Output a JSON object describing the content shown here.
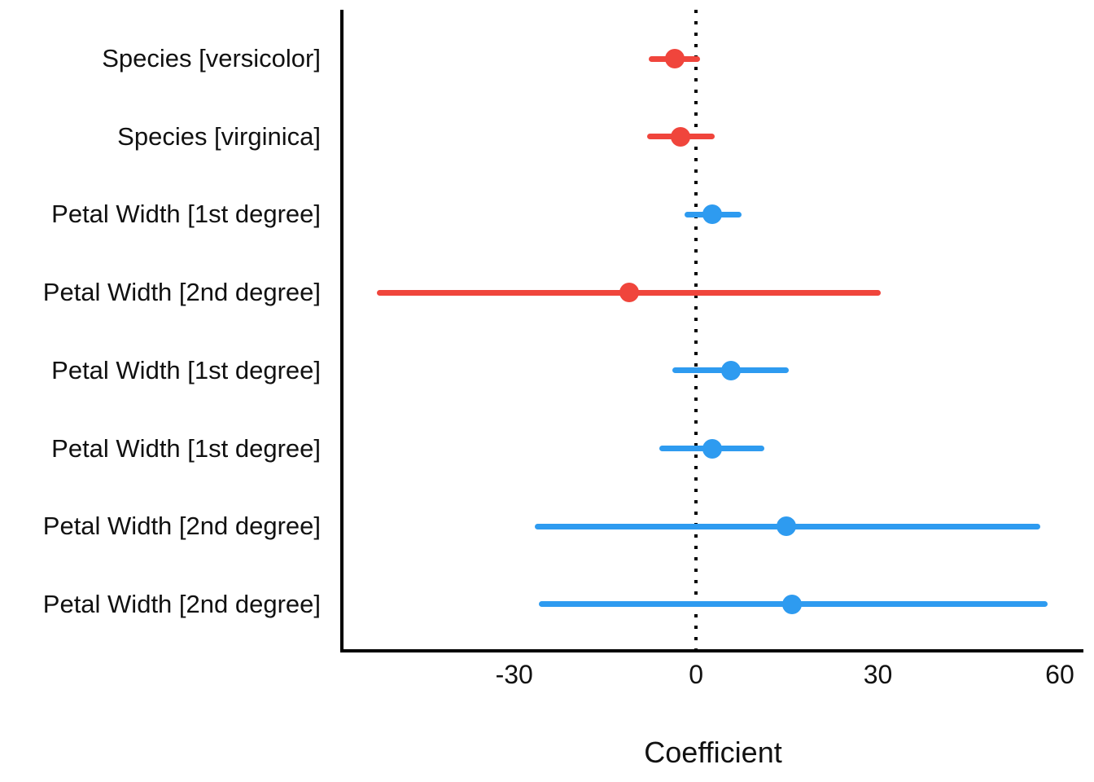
{
  "chart_data": {
    "type": "scatter",
    "subtype": "coefficient-forest-plot",
    "title": "",
    "xlabel": "Coefficient",
    "ylabel": "",
    "grid": false,
    "legend": false,
    "zero_reference_line": 0,
    "xlim": [
      -58.7,
      63.9
    ],
    "xticks": [
      "-30",
      "0",
      "30",
      "60"
    ],
    "xtick_values": [
      -30,
      0,
      30,
      60
    ],
    "colors": {
      "negative_estimate": "#F0453C",
      "positive_estimate": "#2E9BF0",
      "axis": "#000000",
      "text": "#111111",
      "background": "#ffffff"
    },
    "categories": [
      "Species [versicolor]",
      "Species [virginica]",
      "Petal Width [1st degree]",
      "Petal Width [2nd degree]",
      "Petal Width [1st degree]",
      "Petal Width [1st degree]",
      "Petal Width [2nd degree]",
      "Petal Width [2nd degree]"
    ],
    "rows": [
      {
        "label": "Species [versicolor]",
        "estimate": -3.5,
        "ci_low": -7.8,
        "ci_high": 0.7,
        "color": "#F0453C",
        "direction": "negative"
      },
      {
        "label": "Species [virginica]",
        "estimate": -2.6,
        "ci_low": -8.1,
        "ci_high": 3.1,
        "color": "#F0453C",
        "direction": "negative"
      },
      {
        "label": "Petal Width [1st degree]",
        "estimate": 2.7,
        "ci_low": -1.9,
        "ci_high": 7.5,
        "color": "#2E9BF0",
        "direction": "positive"
      },
      {
        "label": "Petal Width [2nd degree]",
        "estimate": -11.0,
        "ci_low": -52.6,
        "ci_high": 30.4,
        "color": "#F0453C",
        "direction": "negative"
      },
      {
        "label": "Petal Width [1st degree]",
        "estimate": 5.7,
        "ci_low": -3.9,
        "ci_high": 15.3,
        "color": "#2E9BF0",
        "direction": "positive"
      },
      {
        "label": "Petal Width [1st degree]",
        "estimate": 2.6,
        "ci_low": -6.0,
        "ci_high": 11.3,
        "color": "#2E9BF0",
        "direction": "positive"
      },
      {
        "label": "Petal Width [2nd degree]",
        "estimate": 14.9,
        "ci_low": -26.6,
        "ci_high": 56.8,
        "color": "#2E9BF0",
        "direction": "positive"
      },
      {
        "label": "Petal Width [2nd degree]",
        "estimate": 15.8,
        "ci_low": -26.0,
        "ci_high": 58.0,
        "color": "#2E9BF0",
        "direction": "positive"
      }
    ]
  }
}
